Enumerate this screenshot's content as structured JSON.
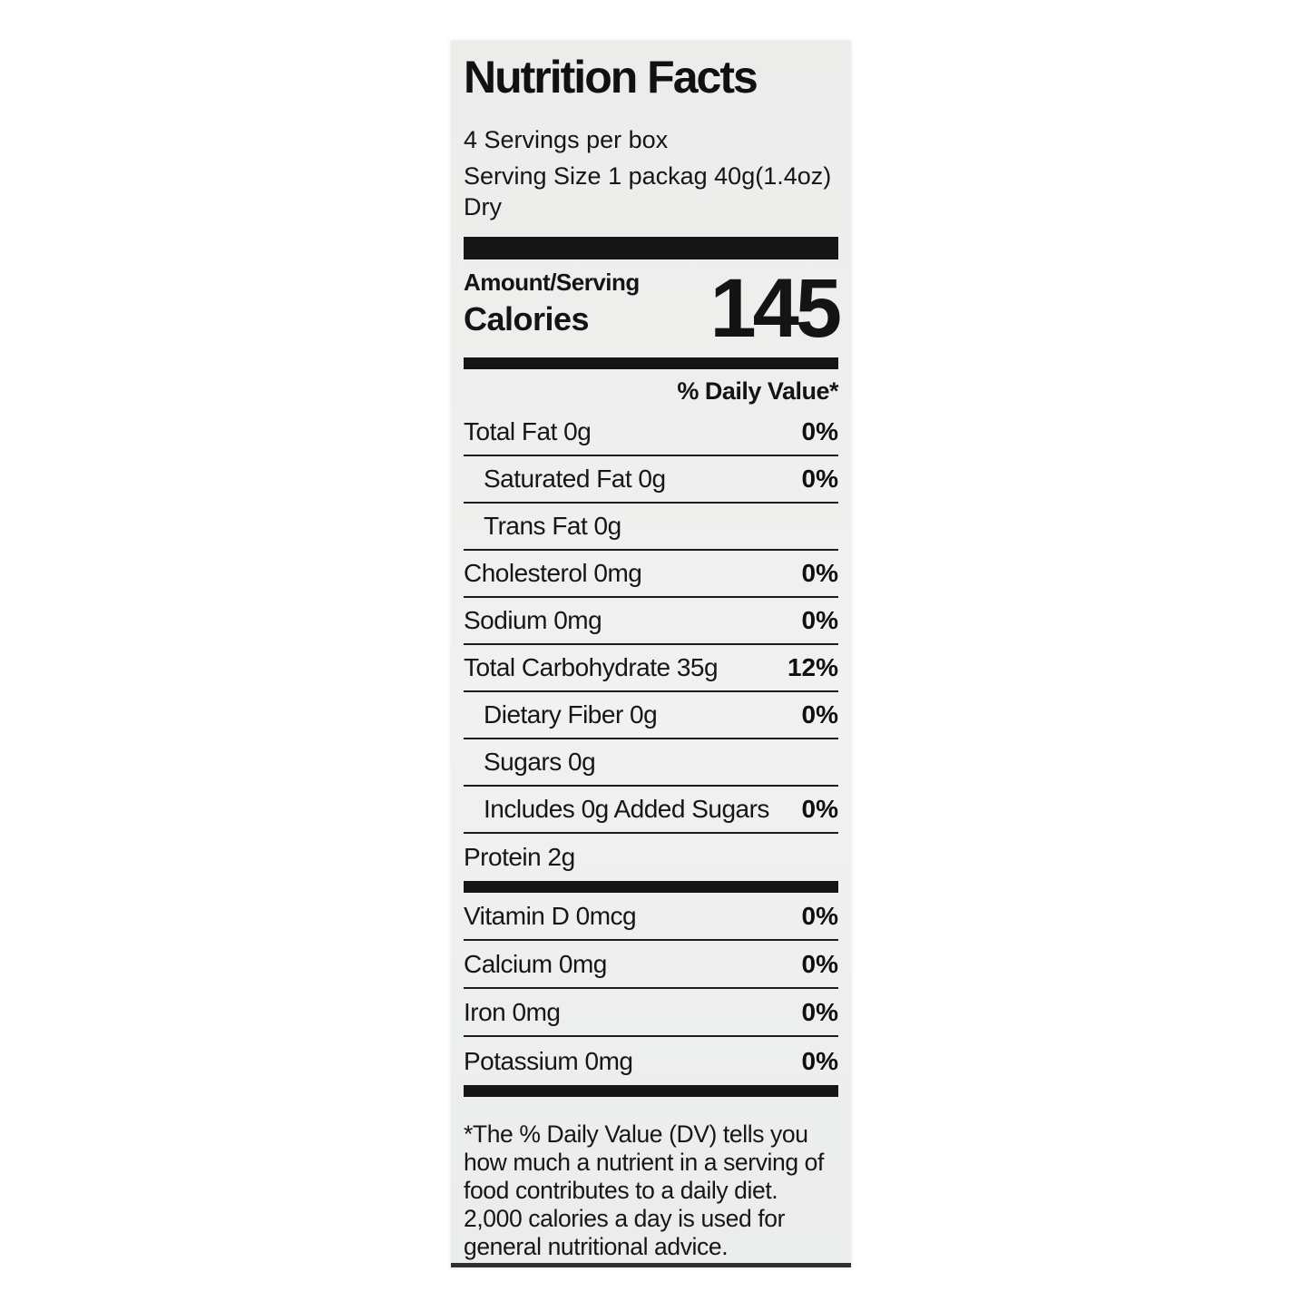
{
  "label": {
    "title": "Nutrition Facts",
    "servings_per_box": "4 Servings per box",
    "serving_size": "Serving Size 1 packag 40g(1.4oz) Dry",
    "amount_per_serving_header": "Amount/Serving",
    "calories_label": "Calories",
    "calories_value": "145",
    "daily_value_header": "% Daily Value*",
    "nutrients": [
      {
        "name": "Total Fat 0g",
        "dv": "0%"
      },
      {
        "name": "Saturated Fat 0g",
        "dv": "0%"
      },
      {
        "name": "Trans Fat 0g",
        "dv": ""
      },
      {
        "name": "Cholesterol 0mg",
        "dv": "0%"
      },
      {
        "name": "Sodium 0mg",
        "dv": "0%"
      },
      {
        "name": "Total Carbohydrate 35g",
        "dv": "12%"
      },
      {
        "name": "Dietary Fiber 0g",
        "dv": "0%"
      },
      {
        "name": "Sugars 0g",
        "dv": ""
      },
      {
        "name": "Includes 0g Added Sugars",
        "dv": "0%"
      },
      {
        "name": "Protein 2g",
        "dv": ""
      }
    ],
    "vitamins": [
      {
        "name": "Vitamin D 0mcg",
        "dv": "0%"
      },
      {
        "name": "Calcium 0mg",
        "dv": "0%"
      },
      {
        "name": "Iron 0mg",
        "dv": "0%"
      },
      {
        "name": "Potassium 0mg",
        "dv": "0%"
      }
    ],
    "footnote": "*The % Daily Value (DV) tells you how much a nutrient in a serving of food contributes to a daily diet. 2,000 calories a day is used for general nutritional advice.",
    "colors": {
      "card_background": "#ededec",
      "text": "#141414",
      "divider_bar": "#151515",
      "page_background": "#ffffff"
    }
  }
}
